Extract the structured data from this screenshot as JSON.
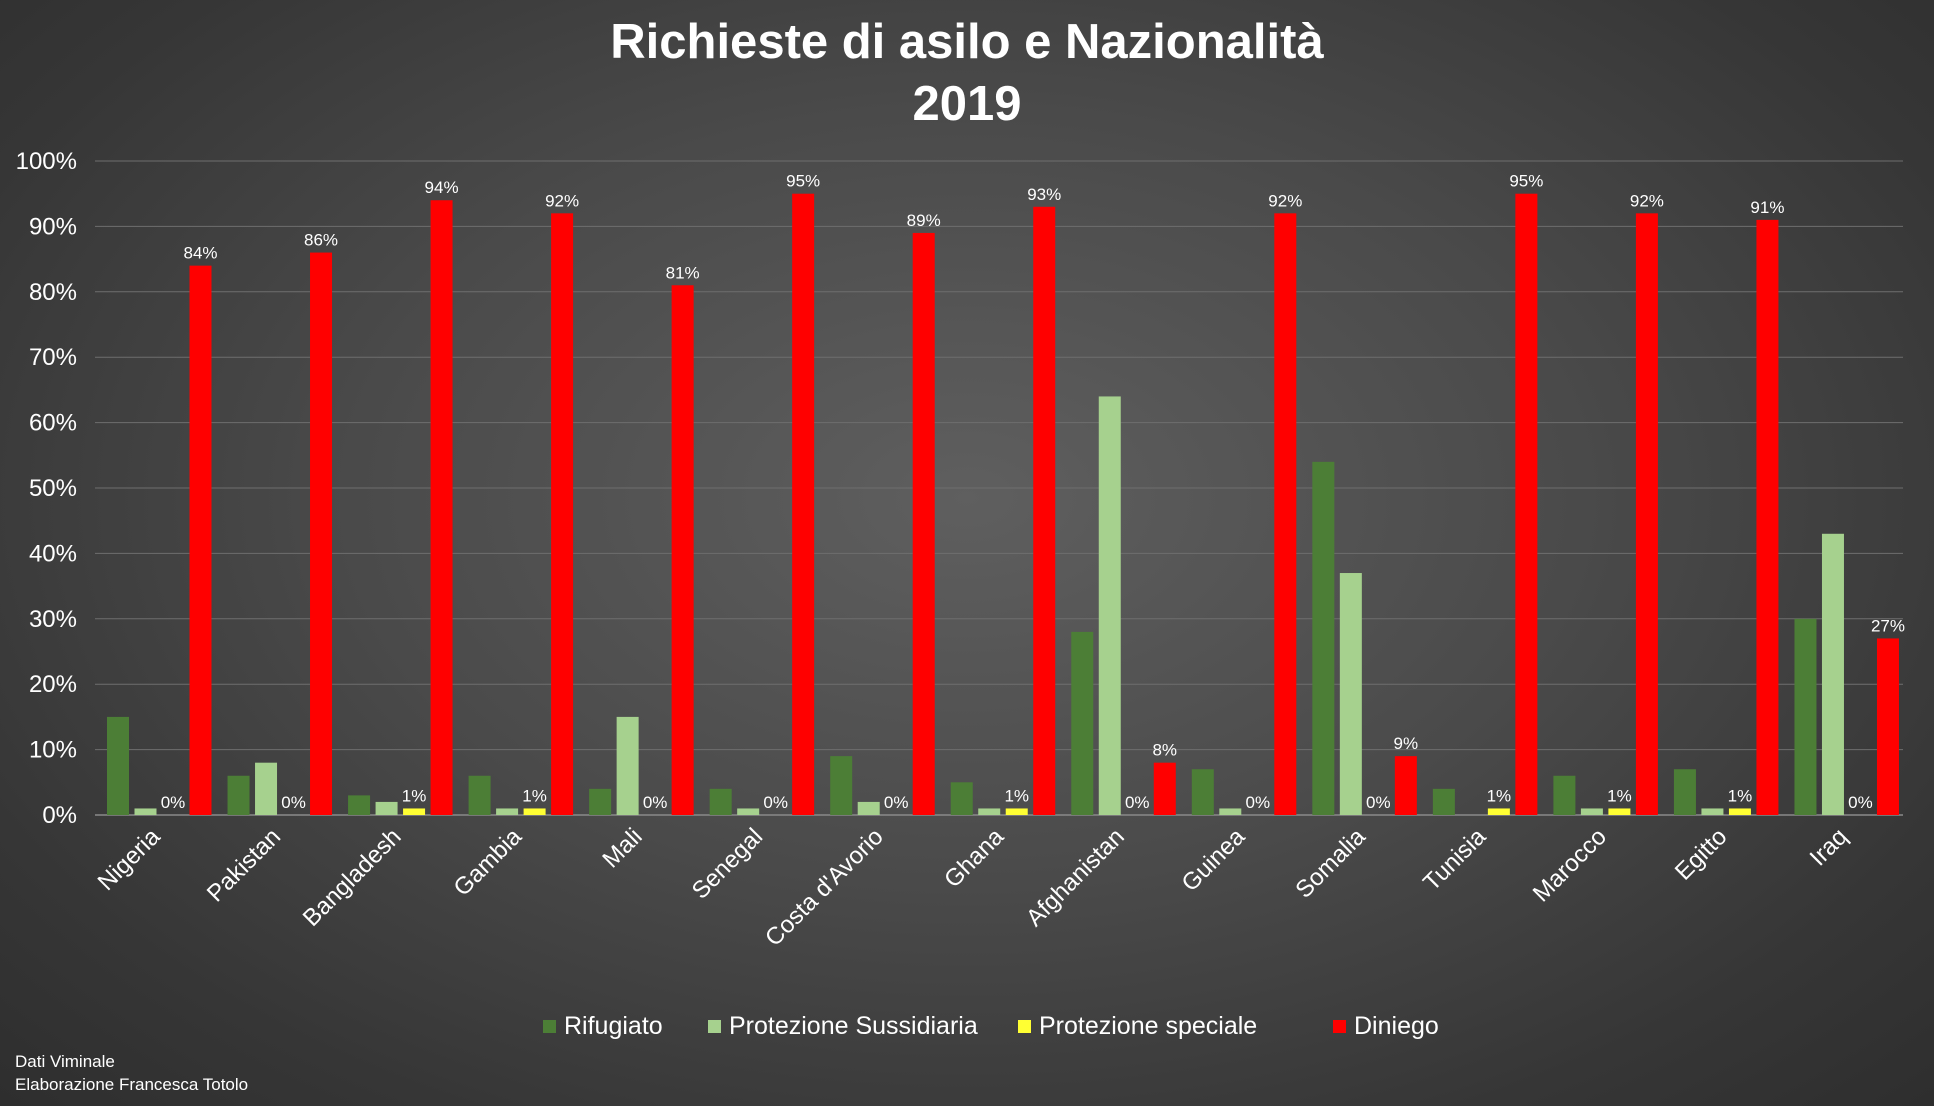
{
  "title_line1": "Richieste di asilo e Nazionalità",
  "title_line2": "2019",
  "source_line1": "Dati Viminale",
  "source_line2": "Elaborazione Francesca Totolo",
  "colors": {
    "Rifugiato": "#4c7e36",
    "Protezione Sussidiaria": "#a6d18e",
    "Protezione speciale": "#ffff33",
    "Diniego": "#ff0000",
    "grid": "#6e6e6e",
    "axis": "#8a8a8a"
  },
  "chart_data": {
    "type": "bar",
    "title": "Richieste di asilo e Nazionalità 2019",
    "categories": [
      "Nigeria",
      "Pakistan",
      "Bangladesh",
      "Gambia",
      "Mali",
      "Senegal",
      "Costa d'Avorio",
      "Ghana",
      "Afghanistan",
      "Guinea",
      "Somalia",
      "Tunisia",
      "Marocco",
      "Egitto",
      "Iraq"
    ],
    "series": [
      {
        "name": "Rifugiato",
        "values": [
          15,
          6,
          3,
          6,
          4,
          4,
          9,
          5,
          28,
          7,
          54,
          4,
          6,
          7,
          30
        ]
      },
      {
        "name": "Protezione Sussidiaria",
        "values": [
          1,
          8,
          2,
          1,
          15,
          1,
          2,
          1,
          64,
          1,
          37,
          0,
          1,
          1,
          43
        ]
      },
      {
        "name": "Protezione speciale",
        "values": [
          0,
          0,
          1,
          1,
          0,
          0,
          0,
          1,
          0,
          0,
          0,
          1,
          1,
          1,
          0
        ]
      },
      {
        "name": "Diniego",
        "values": [
          84,
          86,
          94,
          92,
          81,
          95,
          89,
          93,
          8,
          92,
          9,
          95,
          92,
          91,
          27
        ]
      }
    ],
    "data_labels": {
      "Protezione speciale": [
        "0%",
        "0%",
        "1%",
        "1%",
        "0%",
        "0%",
        "0%",
        "1%",
        "0%",
        "0%",
        "0%",
        "1%",
        "1%",
        "1%",
        "0%"
      ],
      "Diniego": [
        "84%",
        "86%",
        "94%",
        "92%",
        "81%",
        "95%",
        "89%",
        "93%",
        "8%",
        "92%",
        "9%",
        "95%",
        "92%",
        "91%",
        "27%"
      ]
    },
    "yticks": [
      "0%",
      "10%",
      "20%",
      "30%",
      "40%",
      "50%",
      "60%",
      "70%",
      "80%",
      "90%",
      "100%"
    ],
    "ylim": [
      0,
      100
    ],
    "xlabel": "",
    "ylabel": "",
    "grid": true,
    "legend": [
      "Rifugiato",
      "Protezione Sussidiaria",
      "Protezione speciale",
      "Diniego"
    ],
    "legend_position": "bottom"
  }
}
